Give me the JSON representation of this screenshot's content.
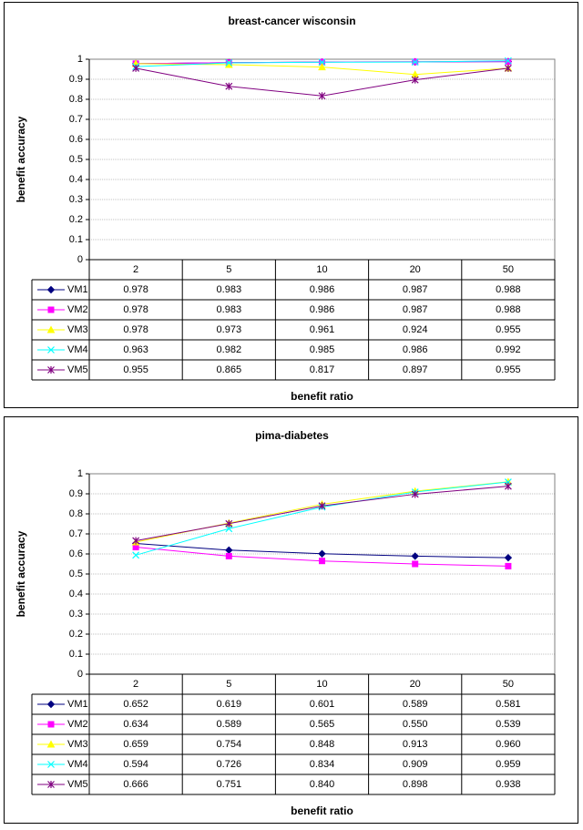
{
  "chart_data": [
    {
      "type": "line",
      "title": "breast-cancer wisconsin",
      "xlabel": "benefit ratio",
      "ylabel": "benefit accuracy",
      "categories": [
        "2",
        "5",
        "10",
        "20",
        "50"
      ],
      "ylim": [
        0,
        1
      ],
      "yticks": [
        "0",
        "0.1",
        "0.2",
        "0.3",
        "0.4",
        "0.5",
        "0.6",
        "0.7",
        "0.8",
        "0.9",
        "1"
      ],
      "grid": true,
      "legend_placement": "data-table",
      "series": [
        {
          "name": "VM1",
          "color": "#000080",
          "marker": "diamond",
          "values": [
            0.978,
            0.983,
            0.986,
            0.987,
            0.988
          ],
          "labels": [
            "0.978",
            "0.983",
            "0.986",
            "0.987",
            "0.988"
          ]
        },
        {
          "name": "VM2",
          "color": "#FF00FF",
          "marker": "square",
          "values": [
            0.978,
            0.983,
            0.986,
            0.987,
            0.988
          ],
          "labels": [
            "0.978",
            "0.983",
            "0.986",
            "0.987",
            "0.988"
          ]
        },
        {
          "name": "VM3",
          "color": "#FFFF00",
          "marker": "triangle",
          "values": [
            0.978,
            0.973,
            0.961,
            0.924,
            0.955
          ],
          "labels": [
            "0.978",
            "0.973",
            "0.961",
            "0.924",
            "0.955"
          ]
        },
        {
          "name": "VM4",
          "color": "#00FFFF",
          "marker": "x",
          "values": [
            0.963,
            0.982,
            0.985,
            0.986,
            0.992
          ],
          "labels": [
            "0.963",
            "0.982",
            "0.985",
            "0.986",
            "0.992"
          ]
        },
        {
          "name": "VM5",
          "color": "#800080",
          "marker": "star",
          "values": [
            0.955,
            0.865,
            0.817,
            0.897,
            0.955
          ],
          "labels": [
            "0.955",
            "0.865",
            "0.817",
            "0.897",
            "0.955"
          ]
        }
      ]
    },
    {
      "type": "line",
      "title": "pima-diabetes",
      "xlabel": "benefit ratio",
      "ylabel": "benefit accuracy",
      "categories": [
        "2",
        "5",
        "10",
        "20",
        "50"
      ],
      "ylim": [
        0,
        1
      ],
      "yticks": [
        "0",
        "0.1",
        "0.2",
        "0.3",
        "0.4",
        "0.5",
        "0.6",
        "0.7",
        "0.8",
        "0.9",
        "1"
      ],
      "grid": true,
      "legend_placement": "data-table",
      "series": [
        {
          "name": "VM1",
          "color": "#000080",
          "marker": "diamond",
          "values": [
            0.652,
            0.619,
            0.601,
            0.589,
            0.581
          ],
          "labels": [
            "0.652",
            "0.619",
            "0.601",
            "0.589",
            "0.581"
          ]
        },
        {
          "name": "VM2",
          "color": "#FF00FF",
          "marker": "square",
          "values": [
            0.634,
            0.589,
            0.565,
            0.55,
            0.539
          ],
          "labels": [
            "0.634",
            "0.589",
            "0.565",
            "0.550",
            "0.539"
          ]
        },
        {
          "name": "VM3",
          "color": "#FFFF00",
          "marker": "triangle",
          "values": [
            0.659,
            0.754,
            0.848,
            0.913,
            0.96
          ],
          "labels": [
            "0.659",
            "0.754",
            "0.848",
            "0.913",
            "0.960"
          ]
        },
        {
          "name": "VM4",
          "color": "#00FFFF",
          "marker": "x",
          "values": [
            0.594,
            0.726,
            0.834,
            0.909,
            0.959
          ],
          "labels": [
            "0.594",
            "0.726",
            "0.834",
            "0.909",
            "0.959"
          ]
        },
        {
          "name": "VM5",
          "color": "#800080",
          "marker": "star",
          "values": [
            0.666,
            0.751,
            0.84,
            0.898,
            0.938
          ],
          "labels": [
            "0.666",
            "0.751",
            "0.840",
            "0.898",
            "0.938"
          ]
        }
      ]
    }
  ]
}
